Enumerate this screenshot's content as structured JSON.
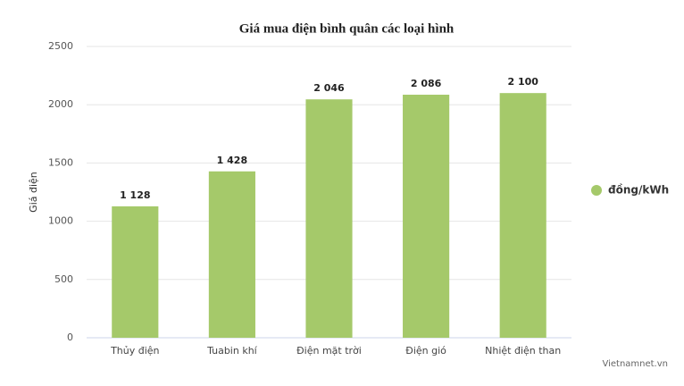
{
  "chart_data": {
    "type": "bar",
    "title": "Giá mua điện bình quân các loại hình",
    "y_label": "Giá điện",
    "categories": [
      "Thủy điện",
      "Tuabin khí",
      "Điện mặt trời",
      "Điện gió",
      "Nhiệt điện than"
    ],
    "series": [
      {
        "name": "đồng/kWh",
        "color": "#a5c96a",
        "values": [
          1128,
          1428,
          2046,
          2086,
          2100
        ],
        "value_labels": [
          "1 128",
          "1 428",
          "2 046",
          "2 086",
          "2 100"
        ]
      }
    ],
    "ylim": [
      0,
      2500
    ],
    "yticks": [
      0,
      500,
      1000,
      1500,
      2000,
      2500
    ],
    "grid": true,
    "legend": "right",
    "credit": "Vietnamnet.vn"
  }
}
